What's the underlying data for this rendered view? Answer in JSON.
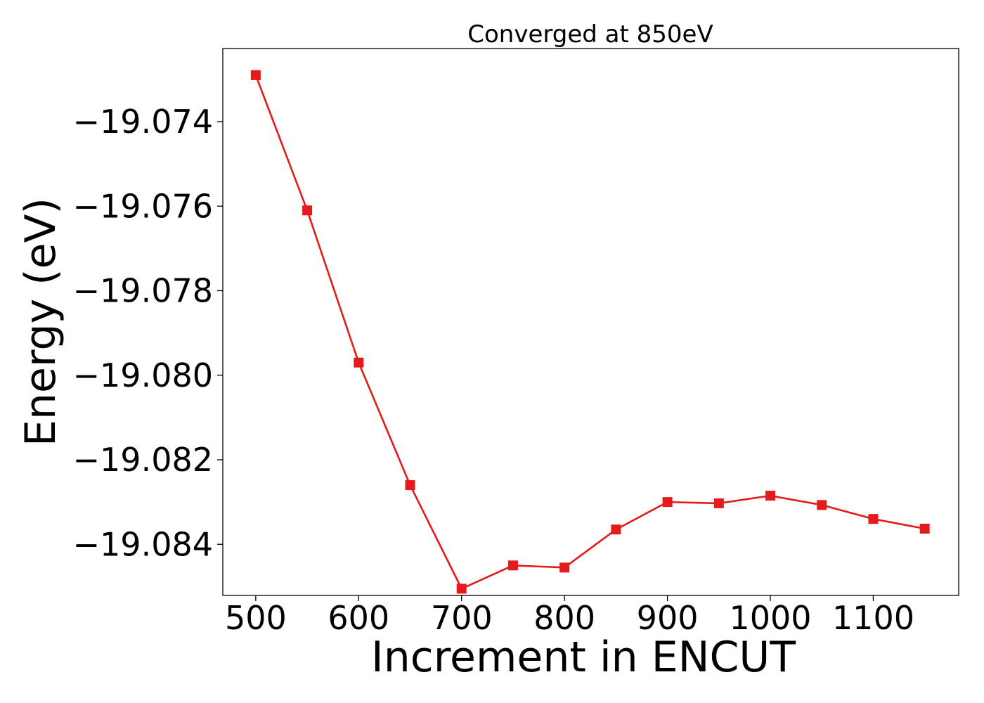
{
  "chart_data": {
    "type": "line",
    "title": "Converged at 850eV",
    "xlabel": "Increment in ENCUT",
    "ylabel": "Energy (eV)",
    "x": [
      500,
      550,
      600,
      650,
      700,
      750,
      800,
      850,
      900,
      950,
      1000,
      1050,
      1100,
      1150
    ],
    "series": [
      {
        "values": [
          -19.0729,
          -19.0761,
          -19.0797,
          -19.0826,
          -19.08505,
          -19.0845,
          -19.08455,
          -19.08365,
          -19.083,
          -19.08303,
          -19.08285,
          -19.08307,
          -19.0834,
          -19.08363
        ],
        "color": "#e41a1c",
        "marker": "square"
      }
    ],
    "xlim": [
      468,
      1183
    ],
    "ylim": [
      -19.08521,
      -19.07227
    ],
    "xticks": [
      500,
      600,
      700,
      800,
      900,
      1000,
      1100
    ],
    "xtick_labels": [
      "500",
      "600",
      "700",
      "800",
      "900",
      "1000",
      "1100"
    ],
    "yticks": [
      -19.074,
      -19.076,
      -19.078,
      -19.08,
      -19.082,
      -19.084
    ],
    "ytick_labels": [
      "−19.074",
      "−19.076",
      "−19.078",
      "−19.080",
      "−19.082",
      "−19.084"
    ],
    "grid": false,
    "legend": false
  }
}
